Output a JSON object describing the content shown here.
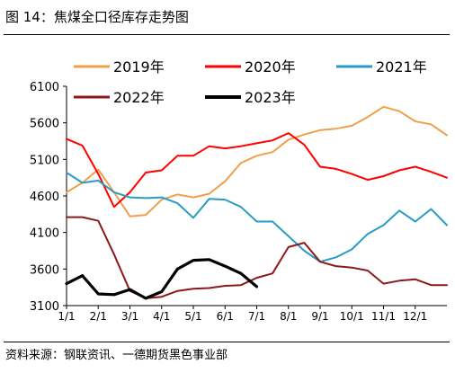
{
  "title": "图 14：焦煤全口径库存走势图",
  "source": "资料来源：钢联资讯、一德期货黑色事业部",
  "chart_data": {
    "type": "line",
    "x": [
      "1/1",
      "1/15",
      "2/1",
      "2/15",
      "3/1",
      "3/15",
      "4/1",
      "4/15",
      "5/1",
      "5/15",
      "6/1",
      "6/15",
      "7/1",
      "7/15",
      "8/1",
      "8/15",
      "9/1",
      "9/15",
      "10/1",
      "10/15",
      "11/1",
      "11/15",
      "12/1",
      "12/15",
      "12/31"
    ],
    "x_tick_labels": [
      "1/1",
      "2/1",
      "3/1",
      "4/1",
      "5/1",
      "6/1",
      "7/1",
      "8/1",
      "9/1",
      "10/1",
      "11/1",
      "12/1"
    ],
    "ylim": [
      3100,
      6100
    ],
    "y_ticks": [
      3100,
      3600,
      4100,
      4600,
      5100,
      5600,
      6100
    ],
    "legend_position": "top",
    "series": [
      {
        "name": "2019年",
        "color": "#f0a04b",
        "values": [
          4650,
          4780,
          4960,
          4650,
          4320,
          4340,
          4550,
          4620,
          4580,
          4630,
          4800,
          5050,
          5150,
          5200,
          5370,
          5440,
          5500,
          5520,
          5560,
          5680,
          5820,
          5760,
          5620,
          5580,
          5430
        ]
      },
      {
        "name": "2020年",
        "color": "#ff0000",
        "values": [
          5380,
          5290,
          4900,
          4450,
          4650,
          4920,
          4950,
          5150,
          5150,
          5280,
          5250,
          5280,
          5320,
          5360,
          5460,
          5300,
          5000,
          4970,
          4900,
          4820,
          4870,
          4950,
          5000,
          4930,
          4850
        ]
      },
      {
        "name": "2021年",
        "color": "#2a9bc4",
        "values": [
          4920,
          4780,
          4810,
          4650,
          4580,
          4570,
          4580,
          4500,
          4300,
          4560,
          4550,
          4450,
          4250,
          4250,
          4050,
          3850,
          3700,
          3760,
          3870,
          4080,
          4200,
          4400,
          4250,
          4420,
          4200
        ]
      },
      {
        "name": "2022年",
        "color": "#8b1a1a",
        "values": [
          4310,
          4310,
          4260,
          3800,
          3300,
          3200,
          3220,
          3300,
          3330,
          3340,
          3370,
          3380,
          3480,
          3540,
          3900,
          3960,
          3700,
          3640,
          3620,
          3580,
          3400,
          3440,
          3460,
          3380,
          3380
        ]
      },
      {
        "name": "2023年",
        "color": "#000000",
        "values": [
          3400,
          3510,
          3260,
          3250,
          3320,
          3200,
          3290,
          3600,
          3720,
          3730,
          3640,
          3540,
          3360,
          null,
          null,
          null,
          null,
          null,
          null,
          null,
          null,
          null,
          null,
          null,
          null
        ]
      }
    ]
  }
}
